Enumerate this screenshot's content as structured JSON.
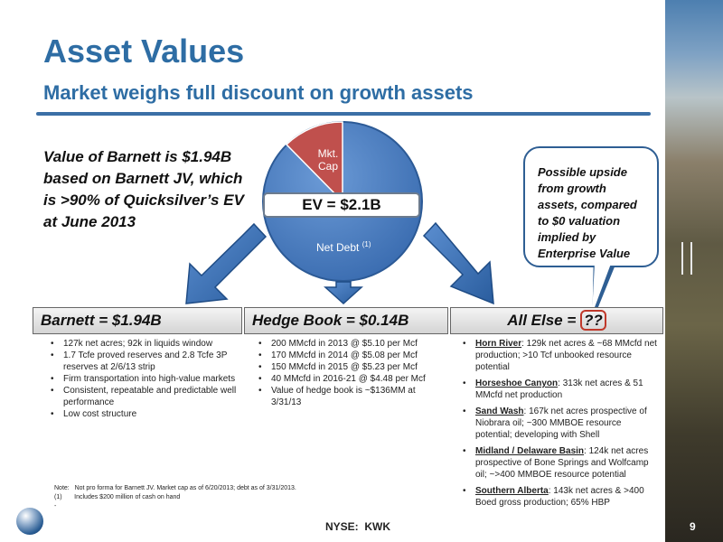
{
  "title": "Asset Values",
  "subtitle": "Market weighs full discount on growth assets",
  "intro": "Value of Barnett is $1.94B based on Barnett JV, which is >90% of Quicksilver’s EV at June 2013",
  "pie": {
    "ev_label": "EV = $2.1B",
    "slice_mkt_cap_line1": "Mkt.",
    "slice_mkt_cap_line2": "Cap",
    "slice_net_debt": "Net Debt",
    "slice_net_debt_note": "(1)",
    "colors": {
      "net_debt": "#4a7cc0",
      "mkt_cap": "#c0504d"
    }
  },
  "callout": "Possible upside from growth assets, compared to $0 valuation implied by Enterprise Value",
  "boxes": {
    "barnett": "Barnett = $1.94B",
    "hedge": "Hedge Book = $0.14B",
    "all_else_prefix": "All Else = ",
    "all_else_value": "??"
  },
  "barnett_items": [
    "127k net acres; 92k in liquids window",
    "1.7 Tcfe proved reserves and 2.8 Tcfe 3P reserves at 2/6/13 strip",
    "Firm transportation into high-value markets",
    "Consistent, repeatable and predictable well performance",
    "Low cost structure"
  ],
  "hedge_items": [
    "200 MMcfd in 2013 @ $5.10 per Mcf",
    "170 MMcfd in 2014 @ $5.08 per Mcf",
    "150 MMcfd in 2015 @ $5.23 per Mcf",
    "40 MMcfd in 2016-21 @ $4.48 per Mcf",
    "Value of hedge book is ~$136MM at 3/31/13"
  ],
  "all_else_items": [
    {
      "name": "Horn River",
      "text": ": 129k net acres & ~68 MMcfd net production; >10 Tcf unbooked resource potential"
    },
    {
      "name": "Horseshoe Canyon",
      "text": ": 313k net acres & 51 MMcfd net production"
    },
    {
      "name": "Sand Wash",
      "text": ": 167k net acres prospective of Niobrara oil; ~300 MMBOE resource potential; developing with Shell"
    },
    {
      "name": "Midland / Delaware Basin",
      "text": ": 124k net acres prospective of Bone Springs and Wolfcamp oil; ~>400 MMBOE resource potential"
    },
    {
      "name": "Southern Alberta",
      "text": ": 143k net acres & >400 Boed gross production; 65% HBP"
    }
  ],
  "note_line1": "Note:   Not pro forma for Barnett JV. Market cap as of 6/20/2013; debt as of 3/31/2013.",
  "note_line2": "(1)       Includes $200 million of cash on hand",
  "note_line3": "-",
  "footer": "NYSE:  KWK",
  "page_number": "9"
}
